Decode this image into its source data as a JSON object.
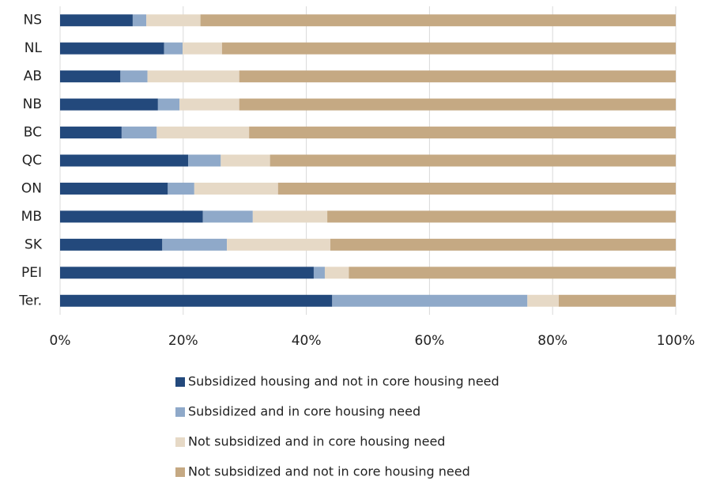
{
  "chart_data": {
    "type": "stacked-barh",
    "categories": [
      "NS",
      "NL",
      "AB",
      "NB",
      "BC",
      "QC",
      "ON",
      "MB",
      "SK",
      "PEI",
      "Ter."
    ],
    "series": [
      {
        "name": "Subsidized housing and not in core housing need",
        "color": "#23497c",
        "values": [
          11.8,
          16.9,
          9.8,
          15.9,
          10.0,
          20.8,
          17.5,
          23.2,
          16.6,
          41.2,
          44.2
        ]
      },
      {
        "name": "Subsidized and in core housing need",
        "color": "#8fa9c9",
        "values": [
          2.2,
          3.0,
          4.4,
          3.5,
          5.7,
          5.3,
          4.3,
          8.1,
          10.5,
          1.8,
          31.7
        ]
      },
      {
        "name": "Not subsidized and in core housing need",
        "color": "#e6d9c6",
        "values": [
          8.8,
          6.4,
          14.9,
          9.7,
          15.0,
          8.0,
          13.6,
          12.1,
          16.8,
          3.9,
          5.1
        ]
      },
      {
        "name": "Not subsidized and not in core housing need",
        "color": "#c5a983",
        "values": [
          77.2,
          73.7,
          70.9,
          70.9,
          69.3,
          65.9,
          64.6,
          56.6,
          56.1,
          53.1,
          19.0
        ]
      }
    ],
    "xlim": [
      0,
      100
    ],
    "xticks": [
      {
        "value": 0,
        "label": "0%"
      },
      {
        "value": 20,
        "label": "20%"
      },
      {
        "value": 40,
        "label": "40%"
      },
      {
        "value": 60,
        "label": "60%"
      },
      {
        "value": 80,
        "label": "80%"
      },
      {
        "value": 100,
        "label": "100%"
      }
    ],
    "grid": true
  }
}
